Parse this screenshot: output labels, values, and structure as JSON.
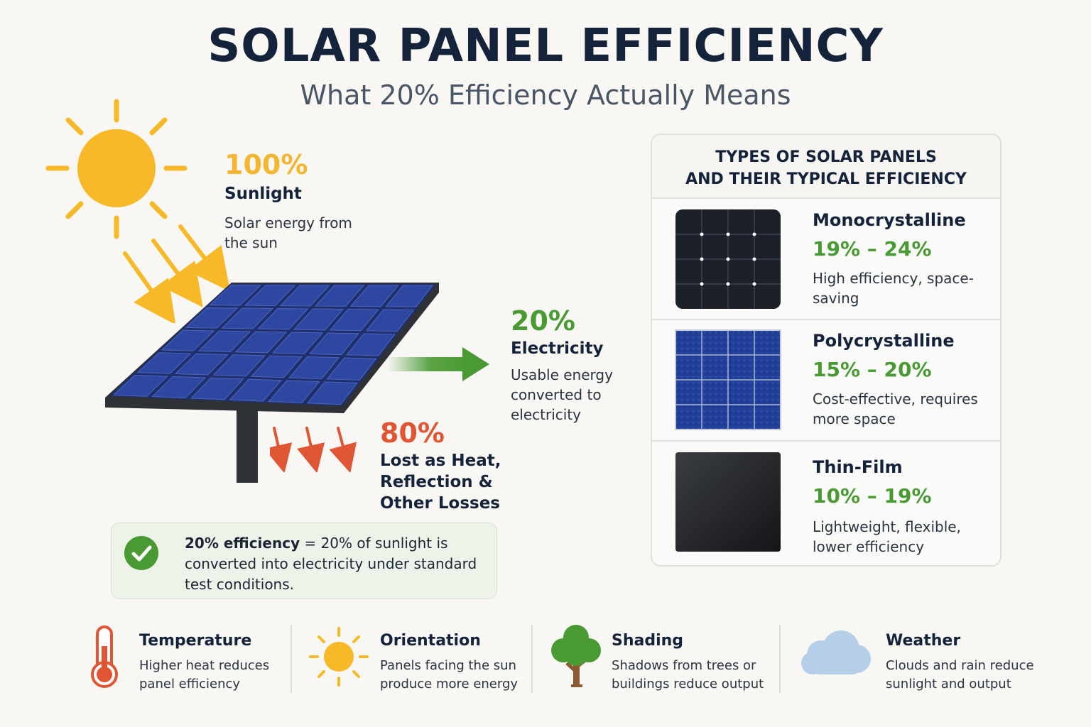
{
  "title": "SOLAR PANEL EFFICIENCY",
  "subtitle": "What 20% Efficiency Actually Means",
  "colors": {
    "sun": "#f7b928",
    "electricity_green": "#4a9a34",
    "loss_red": "#e05534",
    "panel_blue": "#233a86"
  },
  "sunlight": {
    "percent": "100%",
    "label": "Sunlight",
    "desc": "Solar energy from the sun"
  },
  "electricity": {
    "percent": "20%",
    "label": "Electricity",
    "desc": "Usable energy converted to electricity"
  },
  "losses": {
    "percent": "80%",
    "label": "Lost as Heat, Reflection & Other Losses"
  },
  "note": {
    "bold": "20% efficiency",
    "text": " = 20% of sunlight is converted into electricity under standard test conditions.",
    "icon": "check-circle-icon"
  },
  "types_panel": {
    "title": "TYPES OF SOLAR PANELS\nAND THEIR TYPICAL EFFICIENCY",
    "types": [
      {
        "name": "Monocrystalline",
        "range": "19% – 24%",
        "desc": "High efficiency, space-saving",
        "icon": "monocrystalline-panel-icon"
      },
      {
        "name": "Polycrystalline",
        "range": "15% – 20%",
        "desc": "Cost-effective, requires more space",
        "icon": "polycrystalline-panel-icon"
      },
      {
        "name": "Thin-Film",
        "range": "10% – 19%",
        "desc": "Lightweight, flexible, lower efficiency",
        "icon": "thin-film-panel-icon"
      }
    ]
  },
  "factors": [
    {
      "title": "Temperature",
      "desc": "Higher heat reduces panel efficiency",
      "icon": "thermometer-icon"
    },
    {
      "title": "Orientation",
      "desc": "Panels facing the sun produce more energy",
      "icon": "sun-icon"
    },
    {
      "title": "Shading",
      "desc": "Shadows from trees or buildings reduce output",
      "icon": "tree-icon"
    },
    {
      "title": "Weather",
      "desc": "Clouds and rain reduce sunlight and output",
      "icon": "cloud-icon"
    }
  ]
}
